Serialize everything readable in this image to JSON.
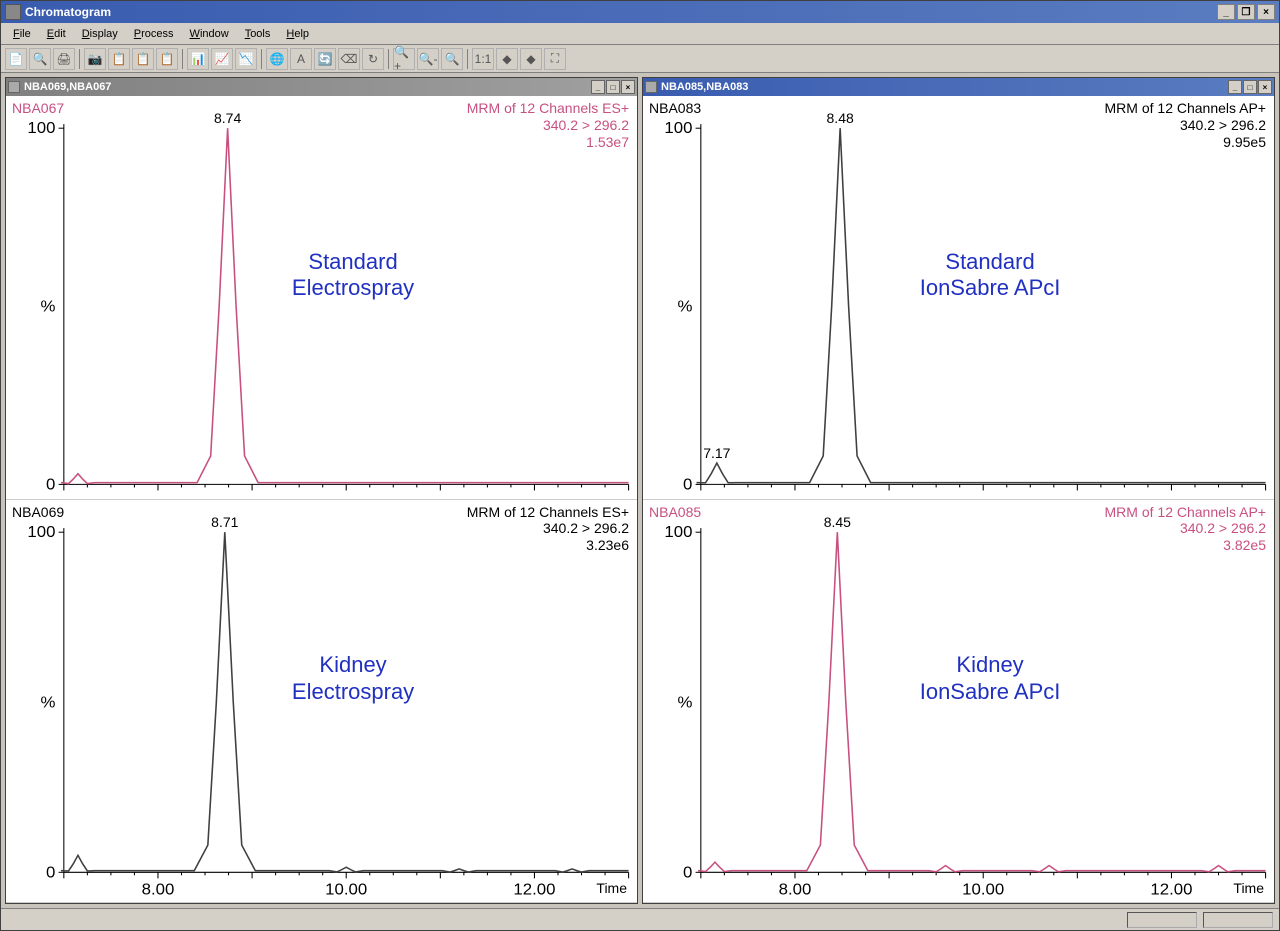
{
  "app": {
    "title": "Chromatogram",
    "menus": [
      "File",
      "Edit",
      "Display",
      "Process",
      "Window",
      "Tools",
      "Help"
    ],
    "menu_underline_idx": [
      0,
      0,
      0,
      0,
      0,
      0,
      0
    ],
    "toolbar_icons": [
      "📄",
      "🔍",
      "🖨",
      "|",
      "📷",
      "📋",
      "📋",
      "📋",
      "|",
      "📊",
      "📈",
      "📉",
      "|",
      "🌐",
      "A",
      "🔄",
      "⌫",
      "↻",
      "|",
      "🔍+",
      "🔍-",
      "🔍",
      "|",
      "1:1",
      "◆",
      "◆",
      "⛶"
    ]
  },
  "subwindows": [
    {
      "active": false,
      "title": "NBA069,NBA067",
      "plots": [
        {
          "sample_id": "NBA067",
          "sample_id_color": "#c85080",
          "meta_lines": [
            "MRM of 12 Channels ES+",
            "340.2 > 296.2",
            "1.53e7"
          ],
          "meta_color": "#c85080",
          "overlay": "Standard\nElectrospray",
          "line_color": "#c85080",
          "xlim": [
            7.0,
            13.0
          ],
          "xticks": [
            8.0,
            10.0,
            12.0
          ],
          "ylim": [
            0,
            100
          ],
          "yticks": [
            0,
            100
          ],
          "ytick_label_mid": "%",
          "peaks": [
            {
              "rt": 8.74,
              "h": 100,
              "hw": 0.18,
              "label": "8.74"
            }
          ],
          "minor_bumps": [
            {
              "rt": 7.15,
              "h": 3
            }
          ],
          "show_xaxis": false
        },
        {
          "sample_id": "NBA069",
          "sample_id_color": "#000000",
          "meta_lines": [
            "MRM of 12 Channels ES+",
            "340.2 > 296.2",
            "3.23e6"
          ],
          "meta_color": "#000000",
          "overlay": "Kidney\nElectrospray",
          "line_color": "#404040",
          "xlim": [
            7.0,
            13.0
          ],
          "xticks": [
            8.0,
            10.0,
            12.0
          ],
          "ylim": [
            0,
            100
          ],
          "yticks": [
            0,
            100
          ],
          "ytick_label_mid": "%",
          "peaks": [
            {
              "rt": 8.71,
              "h": 100,
              "hw": 0.18,
              "label": "8.71"
            }
          ],
          "minor_bumps": [
            {
              "rt": 7.15,
              "h": 5
            },
            {
              "rt": 10.0,
              "h": 1.5
            },
            {
              "rt": 11.2,
              "h": 1
            },
            {
              "rt": 12.4,
              "h": 1
            }
          ],
          "show_xaxis": true,
          "xlabel": "Time"
        }
      ]
    },
    {
      "active": true,
      "title": "NBA085,NBA083",
      "plots": [
        {
          "sample_id": "NBA083",
          "sample_id_color": "#000000",
          "meta_lines": [
            "MRM of 12 Channels AP+",
            "340.2 > 296.2",
            "9.95e5"
          ],
          "meta_color": "#000000",
          "overlay": "Standard\nIonSabre APcI",
          "line_color": "#404040",
          "xlim": [
            7.0,
            13.0
          ],
          "xticks": [
            8.0,
            10.0,
            12.0
          ],
          "ylim": [
            0,
            100
          ],
          "yticks": [
            0,
            100
          ],
          "ytick_label_mid": "%",
          "peaks": [
            {
              "rt": 8.48,
              "h": 100,
              "hw": 0.18,
              "label": "8.48"
            },
            {
              "rt": 7.17,
              "h": 6,
              "hw": 0.12,
              "label": "7.17"
            }
          ],
          "minor_bumps": [],
          "show_xaxis": false
        },
        {
          "sample_id": "NBA085",
          "sample_id_color": "#c85080",
          "meta_lines": [
            "MRM of 12 Channels AP+",
            "340.2 > 296.2",
            "3.82e5"
          ],
          "meta_color": "#c85080",
          "overlay": "Kidney\nIonSabre APcI",
          "line_color": "#c85080",
          "xlim": [
            7.0,
            13.0
          ],
          "xticks": [
            8.0,
            10.0,
            12.0
          ],
          "ylim": [
            0,
            100
          ],
          "yticks": [
            0,
            100
          ],
          "ytick_label_mid": "%",
          "peaks": [
            {
              "rt": 8.45,
              "h": 100,
              "hw": 0.18,
              "label": "8.45"
            }
          ],
          "minor_bumps": [
            {
              "rt": 7.15,
              "h": 3
            },
            {
              "rt": 9.6,
              "h": 2
            },
            {
              "rt": 10.7,
              "h": 2
            },
            {
              "rt": 12.5,
              "h": 2
            }
          ],
          "show_xaxis": true,
          "xlabel": "Time"
        }
      ]
    }
  ]
}
